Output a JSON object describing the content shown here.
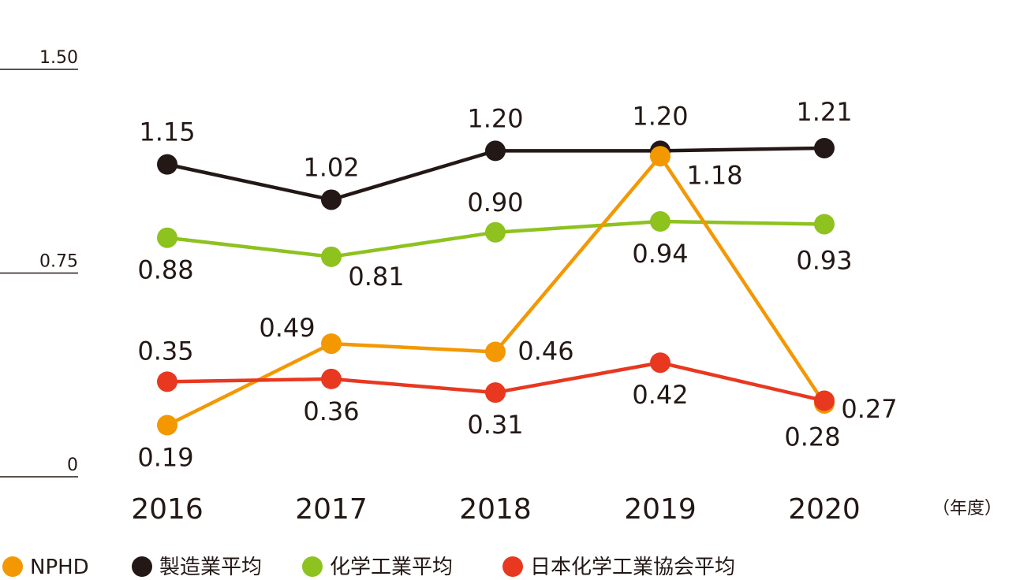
{
  "chart_data": {
    "type": "line",
    "categories": [
      "2016",
      "2017",
      "2018",
      "2019",
      "2020"
    ],
    "x_unit": "（年度）",
    "ylim": [
      0,
      1.5
    ],
    "yticks": [
      "1.50",
      "0.75",
      "0"
    ],
    "grid": false,
    "legend_position": "bottom",
    "series": [
      {
        "name": "製造業平均",
        "color": "#231815",
        "values": [
          1.15,
          1.02,
          1.2,
          1.2,
          1.21
        ],
        "labels": [
          "1.15",
          "1.02",
          "1.20",
          "1.20",
          "1.21"
        ]
      },
      {
        "name": "化学工業平均",
        "color": "#8dc21f",
        "values": [
          0.88,
          0.81,
          0.9,
          0.94,
          0.93
        ],
        "labels": [
          "0.88",
          "0.81",
          "0.90",
          "0.94",
          "0.93"
        ]
      },
      {
        "name": "NPHD",
        "color": "#f39800",
        "values": [
          0.19,
          0.49,
          0.46,
          1.18,
          0.27
        ],
        "labels": [
          "0.19",
          "0.49",
          "0.46",
          "1.18",
          "0.27"
        ]
      },
      {
        "name": "日本化学工業協会平均",
        "color": "#e83820",
        "values": [
          0.35,
          0.36,
          0.31,
          0.42,
          0.28
        ],
        "labels": [
          "0.35",
          "0.36",
          "0.31",
          "0.42",
          "0.28"
        ]
      }
    ],
    "legend": [
      "NPHD",
      "製造業平均",
      "化学工業平均",
      "日本化学工業協会平均"
    ]
  }
}
